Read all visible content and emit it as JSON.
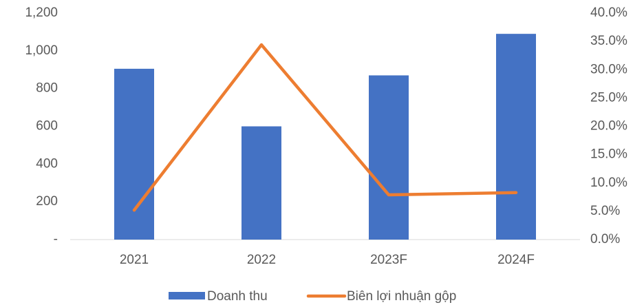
{
  "chart_data": {
    "type": "bar-line",
    "categories": [
      "2021",
      "2022",
      "2023F",
      "2024F"
    ],
    "series": [
      {
        "name": "Doanh thu",
        "type": "bar",
        "color": "#4472c4",
        "values": [
          905,
          600,
          870,
          1090
        ]
      },
      {
        "name": "Biên lợi nhuận gộp",
        "type": "line",
        "axis": "y2",
        "color": "#ed7d31",
        "values": [
          5.2,
          34.4,
          7.9,
          8.3
        ]
      }
    ],
    "ylim": [
      0,
      1200
    ],
    "yticks": [
      {
        "value": 0,
        "label": "-"
      },
      200,
      400,
      600,
      800,
      {
        "value": 1000,
        "label": "1,000"
      },
      {
        "value": 1200,
        "label": "1,200"
      }
    ],
    "y2lim": [
      0,
      40
    ],
    "y2ticks": [
      {
        "value": 0,
        "label": "0.0%"
      },
      {
        "value": 5,
        "label": "5.0%"
      },
      {
        "value": 10,
        "label": "10.0%"
      },
      {
        "value": 15,
        "label": "15.0%"
      },
      {
        "value": 20,
        "label": "20.0%"
      },
      {
        "value": 25,
        "label": "25.0%"
      },
      {
        "value": 30,
        "label": "30.0%"
      },
      {
        "value": 35,
        "label": "35.0%"
      },
      {
        "value": 40,
        "label": "40.0%"
      }
    ],
    "grid": false,
    "legend": "bottom"
  }
}
